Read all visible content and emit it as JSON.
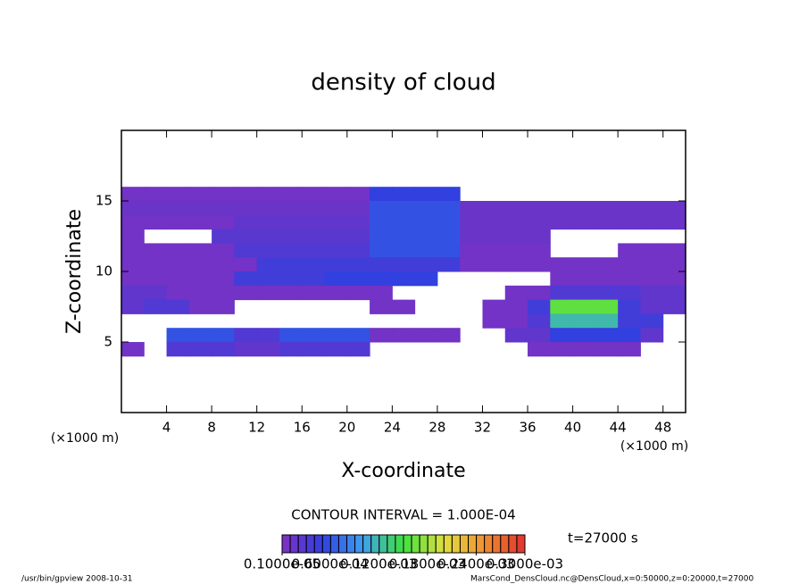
{
  "chart_data": {
    "type": "heatmap",
    "title": "density of cloud",
    "x_label": "X-coordinate",
    "y_label": "Z-coordinate",
    "x_unit": "(×1000 m)",
    "xlim": [
      0,
      50
    ],
    "ylim": [
      0,
      20
    ],
    "xticks": [
      4,
      8,
      12,
      16,
      20,
      24,
      28,
      32,
      36,
      40,
      44,
      48
    ],
    "yticks": [
      5,
      10,
      15
    ],
    "x": [
      1,
      3,
      5,
      7,
      9,
      11,
      13,
      15,
      17,
      19,
      21,
      23,
      25,
      27,
      29,
      31,
      33,
      35,
      37,
      39,
      41,
      43,
      45,
      47,
      49
    ],
    "z": [
      15.5,
      14.5,
      13.5,
      12.5,
      11.5,
      10.5,
      9.5,
      8.5,
      7.5,
      6.5,
      5.5,
      4.5
    ],
    "values": [
      [
        1e-05,
        1e-05,
        1e-05,
        1e-05,
        1e-05,
        1e-05,
        1e-05,
        1e-05,
        1e-05,
        1e-05,
        1e-05,
        5e-05,
        5e-05,
        5e-05,
        5e-05,
        0,
        0,
        0,
        0,
        0,
        0,
        0,
        0,
        0,
        0
      ],
      [
        1.5e-05,
        1.5e-05,
        1.5e-05,
        1.5e-05,
        1.5e-05,
        1.5e-05,
        1.5e-05,
        1.5e-05,
        1.5e-05,
        1.5e-05,
        1.5e-05,
        6e-05,
        6e-05,
        6e-05,
        6e-05,
        1.5e-05,
        1.5e-05,
        1.5e-05,
        1.5e-05,
        1.5e-05,
        1.5e-05,
        1.5e-05,
        1.5e-05,
        1.5e-05,
        1.5e-05
      ],
      [
        1e-05,
        1e-05,
        1e-05,
        1e-05,
        1e-05,
        2e-05,
        2e-05,
        2e-05,
        2e-05,
        2e-05,
        2e-05,
        6e-05,
        6e-05,
        6e-05,
        6e-05,
        1.5e-05,
        1.5e-05,
        1.5e-05,
        1.5e-05,
        1.5e-05,
        1.5e-05,
        1.5e-05,
        1.5e-05,
        1.5e-05,
        1.5e-05
      ],
      [
        1e-05,
        0,
        0,
        0,
        2.5e-05,
        2.5e-05,
        2.5e-05,
        2.5e-05,
        2.5e-05,
        2.5e-05,
        2.5e-05,
        6e-05,
        6e-05,
        6e-05,
        6e-05,
        1.5e-05,
        1.5e-05,
        1.5e-05,
        1.5e-05,
        0,
        0,
        0,
        0,
        0,
        0
      ],
      [
        1e-05,
        1e-05,
        1e-05,
        1e-05,
        1e-05,
        3e-05,
        3e-05,
        3e-05,
        3e-05,
        3e-05,
        3e-05,
        6e-05,
        6e-05,
        6e-05,
        6e-05,
        1e-05,
        1e-05,
        1e-05,
        1e-05,
        0,
        0,
        0,
        1e-05,
        1e-05,
        1e-05
      ],
      [
        1e-05,
        1e-05,
        1e-05,
        1e-05,
        1e-05,
        1e-05,
        4e-05,
        4e-05,
        4e-05,
        4e-05,
        4e-05,
        4e-05,
        4e-05,
        4e-05,
        4e-05,
        1e-05,
        1e-05,
        1e-05,
        1e-05,
        1e-05,
        1e-05,
        1e-05,
        1e-05,
        1e-05,
        1e-05
      ],
      [
        1e-05,
        1e-05,
        1e-05,
        1e-05,
        1e-05,
        4e-05,
        4e-05,
        4e-05,
        4e-05,
        5e-05,
        5e-05,
        5e-05,
        5e-05,
        5e-05,
        0,
        0,
        0,
        0,
        0,
        1e-05,
        1e-05,
        1e-05,
        1e-05,
        1e-05,
        1e-05
      ],
      [
        2e-05,
        2e-05,
        1e-05,
        1e-05,
        1e-05,
        1e-05,
        1e-05,
        1e-05,
        1e-05,
        1e-05,
        1e-05,
        1e-05,
        0,
        0,
        0,
        0,
        0,
        1e-05,
        1e-05,
        3e-05,
        3e-05,
        3e-05,
        3e-05,
        2e-05,
        2e-05
      ],
      [
        2e-05,
        3e-05,
        3e-05,
        1e-05,
        1e-05,
        0,
        0,
        0,
        0,
        0,
        0,
        1e-05,
        1e-05,
        0,
        0,
        0,
        1e-05,
        1e-05,
        4e-05,
        0.00016,
        0.00016,
        0.00016,
        4e-05,
        2e-05,
        2e-05
      ],
      [
        0,
        0,
        0,
        0,
        0,
        0,
        0,
        0,
        0,
        0,
        0,
        0,
        0,
        0,
        0,
        0,
        1e-05,
        1e-05,
        3e-05,
        0.00012,
        0.00012,
        0.00012,
        4e-05,
        4e-05,
        0
      ],
      [
        0,
        0,
        6e-05,
        6e-05,
        6e-05,
        3e-05,
        3e-05,
        6e-05,
        6e-05,
        6e-05,
        6e-05,
        1e-05,
        1e-05,
        1e-05,
        1e-05,
        0,
        0,
        2e-05,
        2e-05,
        5e-05,
        5e-05,
        5e-05,
        5e-05,
        2e-05,
        0
      ],
      [
        1e-05,
        0,
        3e-05,
        3e-05,
        3e-05,
        2e-05,
        2e-05,
        3e-05,
        3e-05,
        3e-05,
        3e-05,
        0,
        0,
        0,
        0,
        0,
        0,
        0,
        1e-05,
        1e-05,
        1e-05,
        1e-05,
        1e-05,
        0,
        0
      ]
    ],
    "colormap": [
      "#8030c0",
      "#3040e0",
      "#40a0f0",
      "#40e040",
      "#e0e040",
      "#f09030",
      "#e03030"
    ],
    "colorbar_lim": [
      1e-06,
      0.0003
    ],
    "colorbar_ticks": [
      {
        "value": 1e-06,
        "label": "0.1000e-05"
      },
      {
        "value": 6e-05,
        "label": "0.6000e-04"
      },
      {
        "value": 0.00012,
        "label": "0.1200e-03"
      },
      {
        "value": 0.00018,
        "label": "0.1800e-03"
      },
      {
        "value": 0.00024,
        "label": "0.2400e-03"
      },
      {
        "value": 0.0003,
        "label": "0.3000e-03"
      }
    ],
    "contour_interval": "CONTOUR INTERVAL = 1.000E-04",
    "time_label": "t=27000 s",
    "footer_left": "/usr/bin/gpview   2008-10-31",
    "footer_right": "MarsCond_DensCloud.nc@DensCloud,x=0:50000,z=0:20000,t=27000"
  }
}
